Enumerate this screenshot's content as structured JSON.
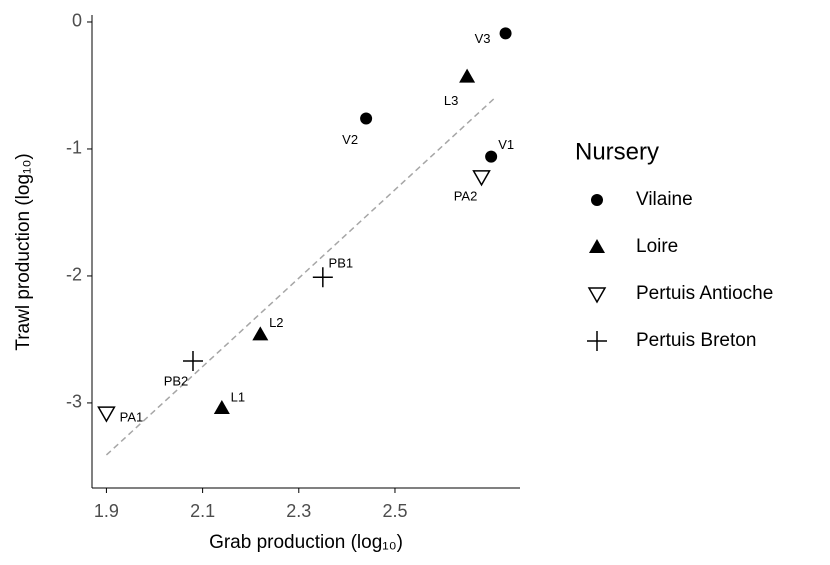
{
  "chart_data": {
    "type": "scatter",
    "x_label": "Grab production (log₁₀)",
    "y_label": "Trawl production (log₁₀)",
    "legend_title": "Nursery",
    "xlim": [
      1.87,
      2.76
    ],
    "ylim": [
      -3.67,
      0.055
    ],
    "xticks": [
      1.9,
      2.1,
      2.3,
      2.5
    ],
    "yticks": [
      -3,
      -2,
      -1,
      0
    ],
    "grid": false,
    "legend_position": "right",
    "series": [
      {
        "name": "Vilaine",
        "marker": "circle",
        "color": "#000000",
        "labels": [
          "V1",
          "V2",
          "V3"
        ],
        "x": [
          2.7,
          2.44,
          2.73
        ],
        "values": [
          -1.06,
          -0.76,
          -0.09
        ]
      },
      {
        "name": "Loire",
        "marker": "triangle",
        "color": "#000000",
        "labels": [
          "L1",
          "L2",
          "L3"
        ],
        "x": [
          2.14,
          2.22,
          2.65
        ],
        "values": [
          -3.04,
          -2.46,
          -0.43
        ]
      },
      {
        "name": "Pertuis Antioche",
        "marker": "triangle-down-open",
        "color": "#000000",
        "labels": [
          "PA1",
          "PA2"
        ],
        "x": [
          1.9,
          2.68
        ],
        "values": [
          -3.08,
          -1.22
        ]
      },
      {
        "name": "Pertuis Breton",
        "marker": "plus",
        "color": "#000000",
        "labels": [
          "PB1",
          "PB2"
        ],
        "x": [
          2.35,
          2.08
        ],
        "values": [
          -2.01,
          -2.67
        ]
      }
    ],
    "fit_line": {
      "color": "#a6a6a6",
      "x": [
        1.9,
        2.71
      ],
      "values": [
        -3.41,
        -0.59
      ]
    }
  }
}
